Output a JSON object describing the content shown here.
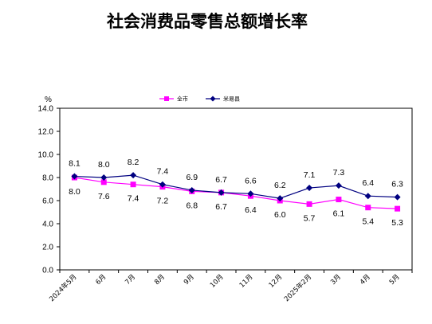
{
  "chart_data": {
    "type": "line",
    "title": "社会消费品零售总额增长率",
    "unit": "%",
    "categories": [
      "2024年5月",
      "6月",
      "7月",
      "8月",
      "9月",
      "10月",
      "11月",
      "12月",
      "2025年2月",
      "3月",
      "4月",
      "5月"
    ],
    "series": [
      {
        "name": "全市",
        "values": [
          8.0,
          7.6,
          7.4,
          7.2,
          6.8,
          6.7,
          6.4,
          6.0,
          5.7,
          6.1,
          5.4,
          5.3
        ],
        "color": "#ff00ff",
        "marker": "square",
        "label_position": "below"
      },
      {
        "name": "米易县",
        "values": [
          8.1,
          8.0,
          8.2,
          7.4,
          6.9,
          6.7,
          6.6,
          6.2,
          7.1,
          7.3,
          6.4,
          6.3
        ],
        "color": "#000080",
        "marker": "diamond",
        "label_position": "above"
      }
    ],
    "ylim": [
      0,
      14
    ],
    "yticks": [
      "0.0",
      "2.0",
      "4.0",
      "6.0",
      "8.0",
      "10.0",
      "12.0",
      "14.0"
    ],
    "legend_position": "top-center",
    "grid": false
  }
}
